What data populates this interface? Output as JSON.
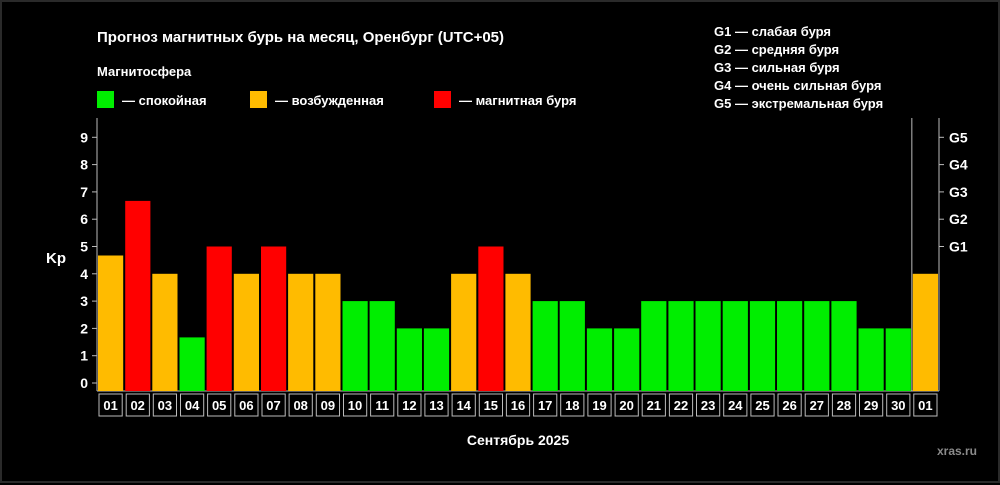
{
  "chart_data": {
    "type": "bar",
    "title": "Прогноз магнитных бурь на месяц, Оренбург (UTC+05)",
    "legend_title": "Магнитосфера",
    "legend": [
      {
        "label": "— спокойная",
        "color": "#00ee00"
      },
      {
        "label": "— возбужденная",
        "color": "#ffbb00"
      },
      {
        "label": "— магнитная буря",
        "color": "#ff0000"
      }
    ],
    "g_legend": [
      "G1 — слабая буря",
      "G2 — средняя буря",
      "G3 — сильная буря",
      "G4 — очень сильная буря",
      "G5 — экстремальная буря"
    ],
    "ylabel": "Kp",
    "xlabel": "Сентябрь 2025",
    "ylim": [
      0,
      9
    ],
    "yticks": [
      "0",
      "1",
      "2",
      "3",
      "4",
      "5",
      "6",
      "7",
      "8",
      "9"
    ],
    "right_ticks": [
      {
        "label": "G1",
        "value": 5
      },
      {
        "label": "G2",
        "value": 6
      },
      {
        "label": "G3",
        "value": 7
      },
      {
        "label": "G4",
        "value": 8
      },
      {
        "label": "G5",
        "value": 9
      }
    ],
    "categories": [
      "01",
      "02",
      "03",
      "04",
      "05",
      "06",
      "07",
      "08",
      "09",
      "10",
      "11",
      "12",
      "13",
      "14",
      "15",
      "16",
      "17",
      "18",
      "19",
      "20",
      "21",
      "22",
      "23",
      "24",
      "25",
      "26",
      "27",
      "28",
      "29",
      "30",
      "01"
    ],
    "values": [
      4.67,
      6.67,
      4,
      1.67,
      5,
      4,
      5,
      4,
      4,
      3,
      3,
      2,
      2,
      4,
      5,
      4,
      3,
      3,
      2,
      2,
      3,
      3,
      3,
      3,
      3,
      3,
      3,
      3,
      2,
      2,
      4
    ],
    "levels": [
      "v",
      "s",
      "v",
      "c",
      "s",
      "v",
      "s",
      "v",
      "v",
      "c",
      "c",
      "c",
      "c",
      "v",
      "s",
      "v",
      "c",
      "c",
      "c",
      "c",
      "c",
      "c",
      "c",
      "c",
      "c",
      "c",
      "c",
      "c",
      "c",
      "c",
      "v"
    ],
    "level_colors": {
      "c": "#00ee00",
      "v": "#ffbb00",
      "s": "#ff0000"
    }
  },
  "watermark": "xras.ru"
}
